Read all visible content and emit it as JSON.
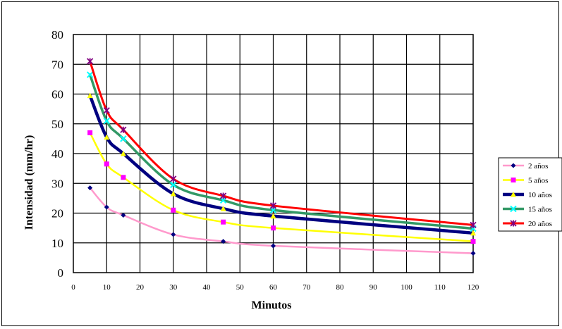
{
  "chart_data": {
    "type": "line",
    "title": "",
    "xlabel": "Minutos",
    "ylabel": "Intensidad (mm/hr)",
    "xlim": [
      0,
      120
    ],
    "ylim": [
      0,
      80
    ],
    "x_ticks": [
      0,
      10,
      20,
      30,
      40,
      50,
      60,
      70,
      80,
      90,
      100,
      110,
      120
    ],
    "y_ticks": [
      0,
      10,
      20,
      30,
      40,
      50,
      60,
      70,
      80
    ],
    "grid": true,
    "legend_position": "right",
    "x": [
      5,
      10,
      15,
      30,
      45,
      60,
      120
    ],
    "series": [
      {
        "name": "2 años",
        "color": "#FF99CC",
        "marker_color": "#000080",
        "marker": "diamond",
        "values": [
          28.5,
          22.0,
          19.3,
          12.8,
          10.5,
          9.0,
          6.5
        ]
      },
      {
        "name": "5 años",
        "color": "#FFFF00",
        "marker_color": "#FF00FF",
        "marker": "square",
        "values": [
          47.0,
          36.5,
          32.0,
          21.0,
          17.0,
          15.0,
          10.5
        ]
      },
      {
        "name": "10 años",
        "color": "#000080",
        "marker_color": "#FFFF00",
        "marker": "triangle",
        "values": [
          59.5,
          45.5,
          40.0,
          26.5,
          21.5,
          19.0,
          13.3
        ]
      },
      {
        "name": "15 años",
        "color": "#339966",
        "marker_color": "#00FFFF",
        "marker": "x",
        "values": [
          66.5,
          51.0,
          45.0,
          29.5,
          24.3,
          21.0,
          14.8
        ]
      },
      {
        "name": "20 años",
        "color": "#FF0000",
        "marker_color": "#800080",
        "marker": "star",
        "values": [
          71.0,
          54.5,
          48.0,
          31.5,
          25.8,
          22.5,
          16.0
        ]
      }
    ]
  }
}
